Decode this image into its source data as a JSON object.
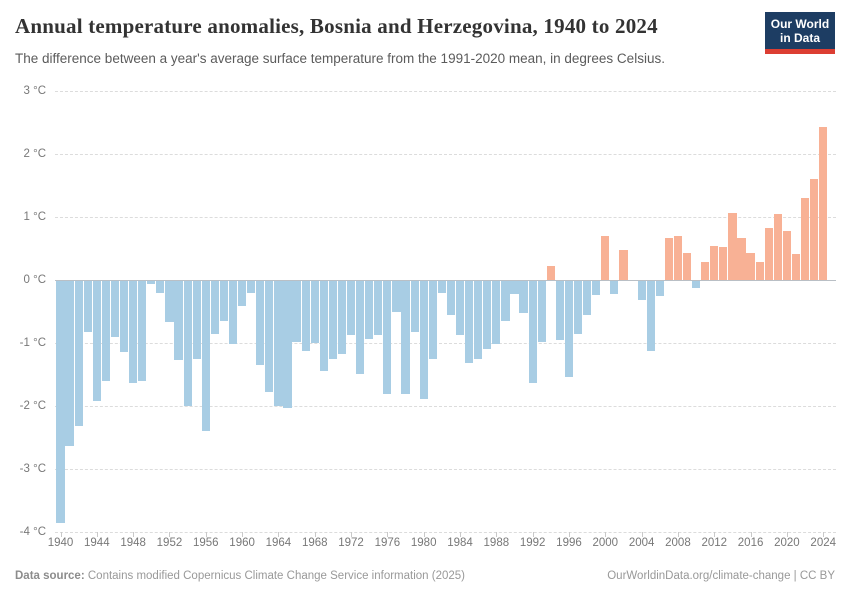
{
  "header": {
    "title": "Annual temperature anomalies, Bosnia and Herzegovina, 1940 to 2024",
    "subtitle": "The difference between a year's average surface temperature from the 1991-2020 mean, in degrees Celsius."
  },
  "logo": {
    "line1": "Our World",
    "line2": "in Data",
    "bg_color": "#1d3d63",
    "accent_color": "#dc3e32"
  },
  "footer": {
    "source_label": "Data source:",
    "source_text": " Contains modified Copernicus Climate Change Service information (2025)",
    "link_text": "OurWorldinData.org/climate-change | CC BY"
  },
  "chart_data": {
    "type": "bar",
    "title": "Annual temperature anomalies, Bosnia and Herzegovina, 1940 to 2024",
    "xlabel": "",
    "ylabel": "degrees Celsius anomaly vs 1991-2020 mean",
    "ylim": [
      -4,
      3
    ],
    "grid": "horizontal-dashed",
    "legend": "none",
    "positive_color": "#f8b195",
    "negative_color": "#a8cde4",
    "y_ticks": [
      {
        "value": 3,
        "label": "3 °C"
      },
      {
        "value": 2,
        "label": "2 °C"
      },
      {
        "value": 1,
        "label": "1 °C"
      },
      {
        "value": 0,
        "label": "0 °C"
      },
      {
        "value": -1,
        "label": "-1 °C"
      },
      {
        "value": -2,
        "label": "-2 °C"
      },
      {
        "value": -3,
        "label": "-3 °C"
      },
      {
        "value": -4,
        "label": "-4 °C"
      }
    ],
    "x_tick_years": [
      1940,
      1944,
      1948,
      1952,
      1956,
      1960,
      1964,
      1968,
      1972,
      1976,
      1980,
      1984,
      1988,
      1992,
      1996,
      2000,
      2004,
      2008,
      2012,
      2016,
      2020,
      2024
    ],
    "x": [
      1940,
      1941,
      1942,
      1943,
      1944,
      1945,
      1946,
      1947,
      1948,
      1949,
      1950,
      1951,
      1952,
      1953,
      1954,
      1955,
      1956,
      1957,
      1958,
      1959,
      1960,
      1961,
      1962,
      1963,
      1964,
      1965,
      1966,
      1967,
      1968,
      1969,
      1970,
      1971,
      1972,
      1973,
      1974,
      1975,
      1976,
      1977,
      1978,
      1979,
      1980,
      1981,
      1982,
      1983,
      1984,
      1985,
      1986,
      1987,
      1988,
      1989,
      1990,
      1991,
      1992,
      1993,
      1994,
      1995,
      1996,
      1997,
      1998,
      1999,
      2000,
      2001,
      2002,
      2003,
      2004,
      2005,
      2006,
      2007,
      2008,
      2009,
      2010,
      2011,
      2012,
      2013,
      2014,
      2015,
      2016,
      2017,
      2018,
      2019,
      2020,
      2021,
      2022,
      2023,
      2024
    ],
    "values": [
      -3.85,
      -2.63,
      -2.32,
      -0.83,
      -1.92,
      -1.6,
      -0.91,
      -1.15,
      -1.63,
      -1.6,
      -0.07,
      -0.2,
      -0.67,
      -1.27,
      -2.0,
      -1.26,
      -2.4,
      -0.85,
      -0.65,
      -1.02,
      -0.41,
      -0.2,
      -1.35,
      -1.77,
      -2.0,
      -2.03,
      -0.99,
      -1.12,
      -1.0,
      -1.44,
      -1.25,
      -1.17,
      -0.88,
      -1.49,
      -0.93,
      -0.88,
      -1.81,
      -0.51,
      -1.81,
      -0.83,
      -1.89,
      -1.25,
      -0.21,
      -0.56,
      -0.88,
      -1.31,
      -1.26,
      -1.1,
      -1.01,
      -0.65,
      -0.22,
      -0.53,
      -1.63,
      -0.98,
      0.23,
      -0.95,
      -1.54,
      -0.85,
      -0.55,
      -0.24,
      0.7,
      -0.23,
      0.48,
      0.0,
      -0.31,
      -1.13,
      -0.26,
      0.66,
      0.7,
      0.43,
      -0.13,
      0.28,
      0.54,
      0.53,
      1.07,
      0.66,
      0.43,
      0.29,
      0.83,
      1.04,
      0.78,
      0.41,
      1.3,
      1.6,
      2.43
    ]
  }
}
